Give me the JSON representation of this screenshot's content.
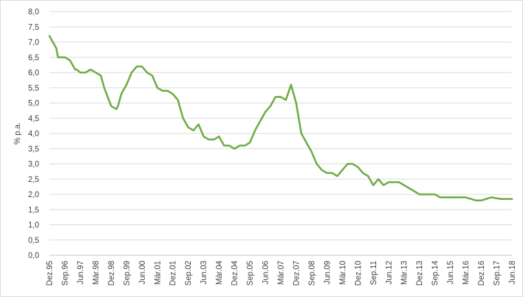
{
  "chart_data": {
    "type": "line",
    "ylabel": "% p.a.",
    "ylim": [
      0,
      8
    ],
    "ytick_step": 0.5,
    "ytick_labels": [
      "0,0",
      "0,5",
      "1,0",
      "1,5",
      "2,0",
      "2,5",
      "3,0",
      "3,5",
      "4,0",
      "4,5",
      "5,0",
      "5,5",
      "6,0",
      "6,5",
      "7,0",
      "7,5",
      "8,0"
    ],
    "xlim": [
      "1995-12",
      "2018-06"
    ],
    "xtick_labels": [
      "Dez.95",
      "Sep.96",
      "Jun.97",
      "Mär.98",
      "Dez.98",
      "Sep.99",
      "Jun.00",
      "Mär.01",
      "Dez.01",
      "Sep.02",
      "Jun.03",
      "Mär.04",
      "Dez.04",
      "Sep.05",
      "Jun.06",
      "Mär.07",
      "Dez.07",
      "Sep.08",
      "Jun.09",
      "Mär.10",
      "Dez.10",
      "Sep.11",
      "Jun.12",
      "Mär.13",
      "Dez.13",
      "Sep.14",
      "Jun.15",
      "Mär.16",
      "Dez.16",
      "Sep.17",
      "Jun.18"
    ],
    "grid": true,
    "legend": "none",
    "line_color": "#70ad47",
    "series": [
      {
        "x": [
          "1995-12",
          "1996-02",
          "1996-04",
          "1996-05",
          "1996-06",
          "1996-09",
          "1996-12",
          "1997-03",
          "1997-04",
          "1997-06",
          "1997-09",
          "1997-12",
          "1998-03",
          "1998-06",
          "1998-08",
          "1998-10",
          "1998-12",
          "1999-03",
          "1999-04",
          "1999-06",
          "1999-09",
          "1999-12",
          "2000-03",
          "2000-06",
          "2000-09",
          "2000-12",
          "2001-03",
          "2001-06",
          "2001-09",
          "2001-12",
          "2002-03",
          "2002-06",
          "2002-09",
          "2002-12",
          "2003-03",
          "2003-06",
          "2003-09",
          "2003-12",
          "2004-03",
          "2004-06",
          "2004-09",
          "2004-12",
          "2005-03",
          "2005-06",
          "2005-09",
          "2005-12",
          "2006-03",
          "2006-06",
          "2006-09",
          "2006-12",
          "2007-03",
          "2007-06",
          "2007-09",
          "2007-12",
          "2008-03",
          "2008-06",
          "2008-09",
          "2008-12",
          "2009-03",
          "2009-06",
          "2009-09",
          "2009-12",
          "2010-03",
          "2010-06",
          "2010-09",
          "2010-12",
          "2011-03",
          "2011-06",
          "2011-09",
          "2011-12",
          "2012-03",
          "2012-06",
          "2012-09",
          "2012-12",
          "2013-03",
          "2013-06",
          "2013-09",
          "2013-12",
          "2014-03",
          "2014-06",
          "2014-09",
          "2014-12",
          "2015-03",
          "2015-06",
          "2015-09",
          "2015-12",
          "2016-03",
          "2016-06",
          "2016-09",
          "2016-12",
          "2017-03",
          "2017-06",
          "2017-09",
          "2017-12",
          "2018-03",
          "2018-06"
        ],
        "y": [
          7.2,
          7.0,
          6.8,
          6.5,
          6.5,
          6.5,
          6.4,
          6.1,
          6.1,
          6.0,
          6.0,
          6.1,
          6.0,
          5.9,
          5.5,
          5.2,
          4.9,
          4.8,
          4.9,
          5.3,
          5.6,
          6.0,
          6.2,
          6.2,
          6.0,
          5.9,
          5.5,
          5.4,
          5.4,
          5.3,
          5.1,
          4.5,
          4.2,
          4.1,
          4.3,
          3.9,
          3.8,
          3.8,
          3.9,
          3.6,
          3.6,
          3.5,
          3.6,
          3.6,
          3.7,
          4.1,
          4.4,
          4.7,
          4.9,
          5.2,
          5.2,
          5.1,
          5.6,
          5.0,
          4.0,
          3.7,
          3.4,
          3.0,
          2.8,
          2.7,
          2.7,
          2.6,
          2.8,
          3.0,
          3.0,
          2.9,
          2.7,
          2.6,
          2.3,
          2.5,
          2.3,
          2.4,
          2.4,
          2.4,
          2.3,
          2.2,
          2.1,
          2.0,
          2.0,
          2.0,
          2.0,
          1.9,
          1.9,
          1.9,
          1.9,
          1.9,
          1.9,
          1.85,
          1.8,
          1.8,
          1.85,
          1.9,
          1.87,
          1.85,
          1.85,
          1.85
        ]
      }
    ]
  }
}
